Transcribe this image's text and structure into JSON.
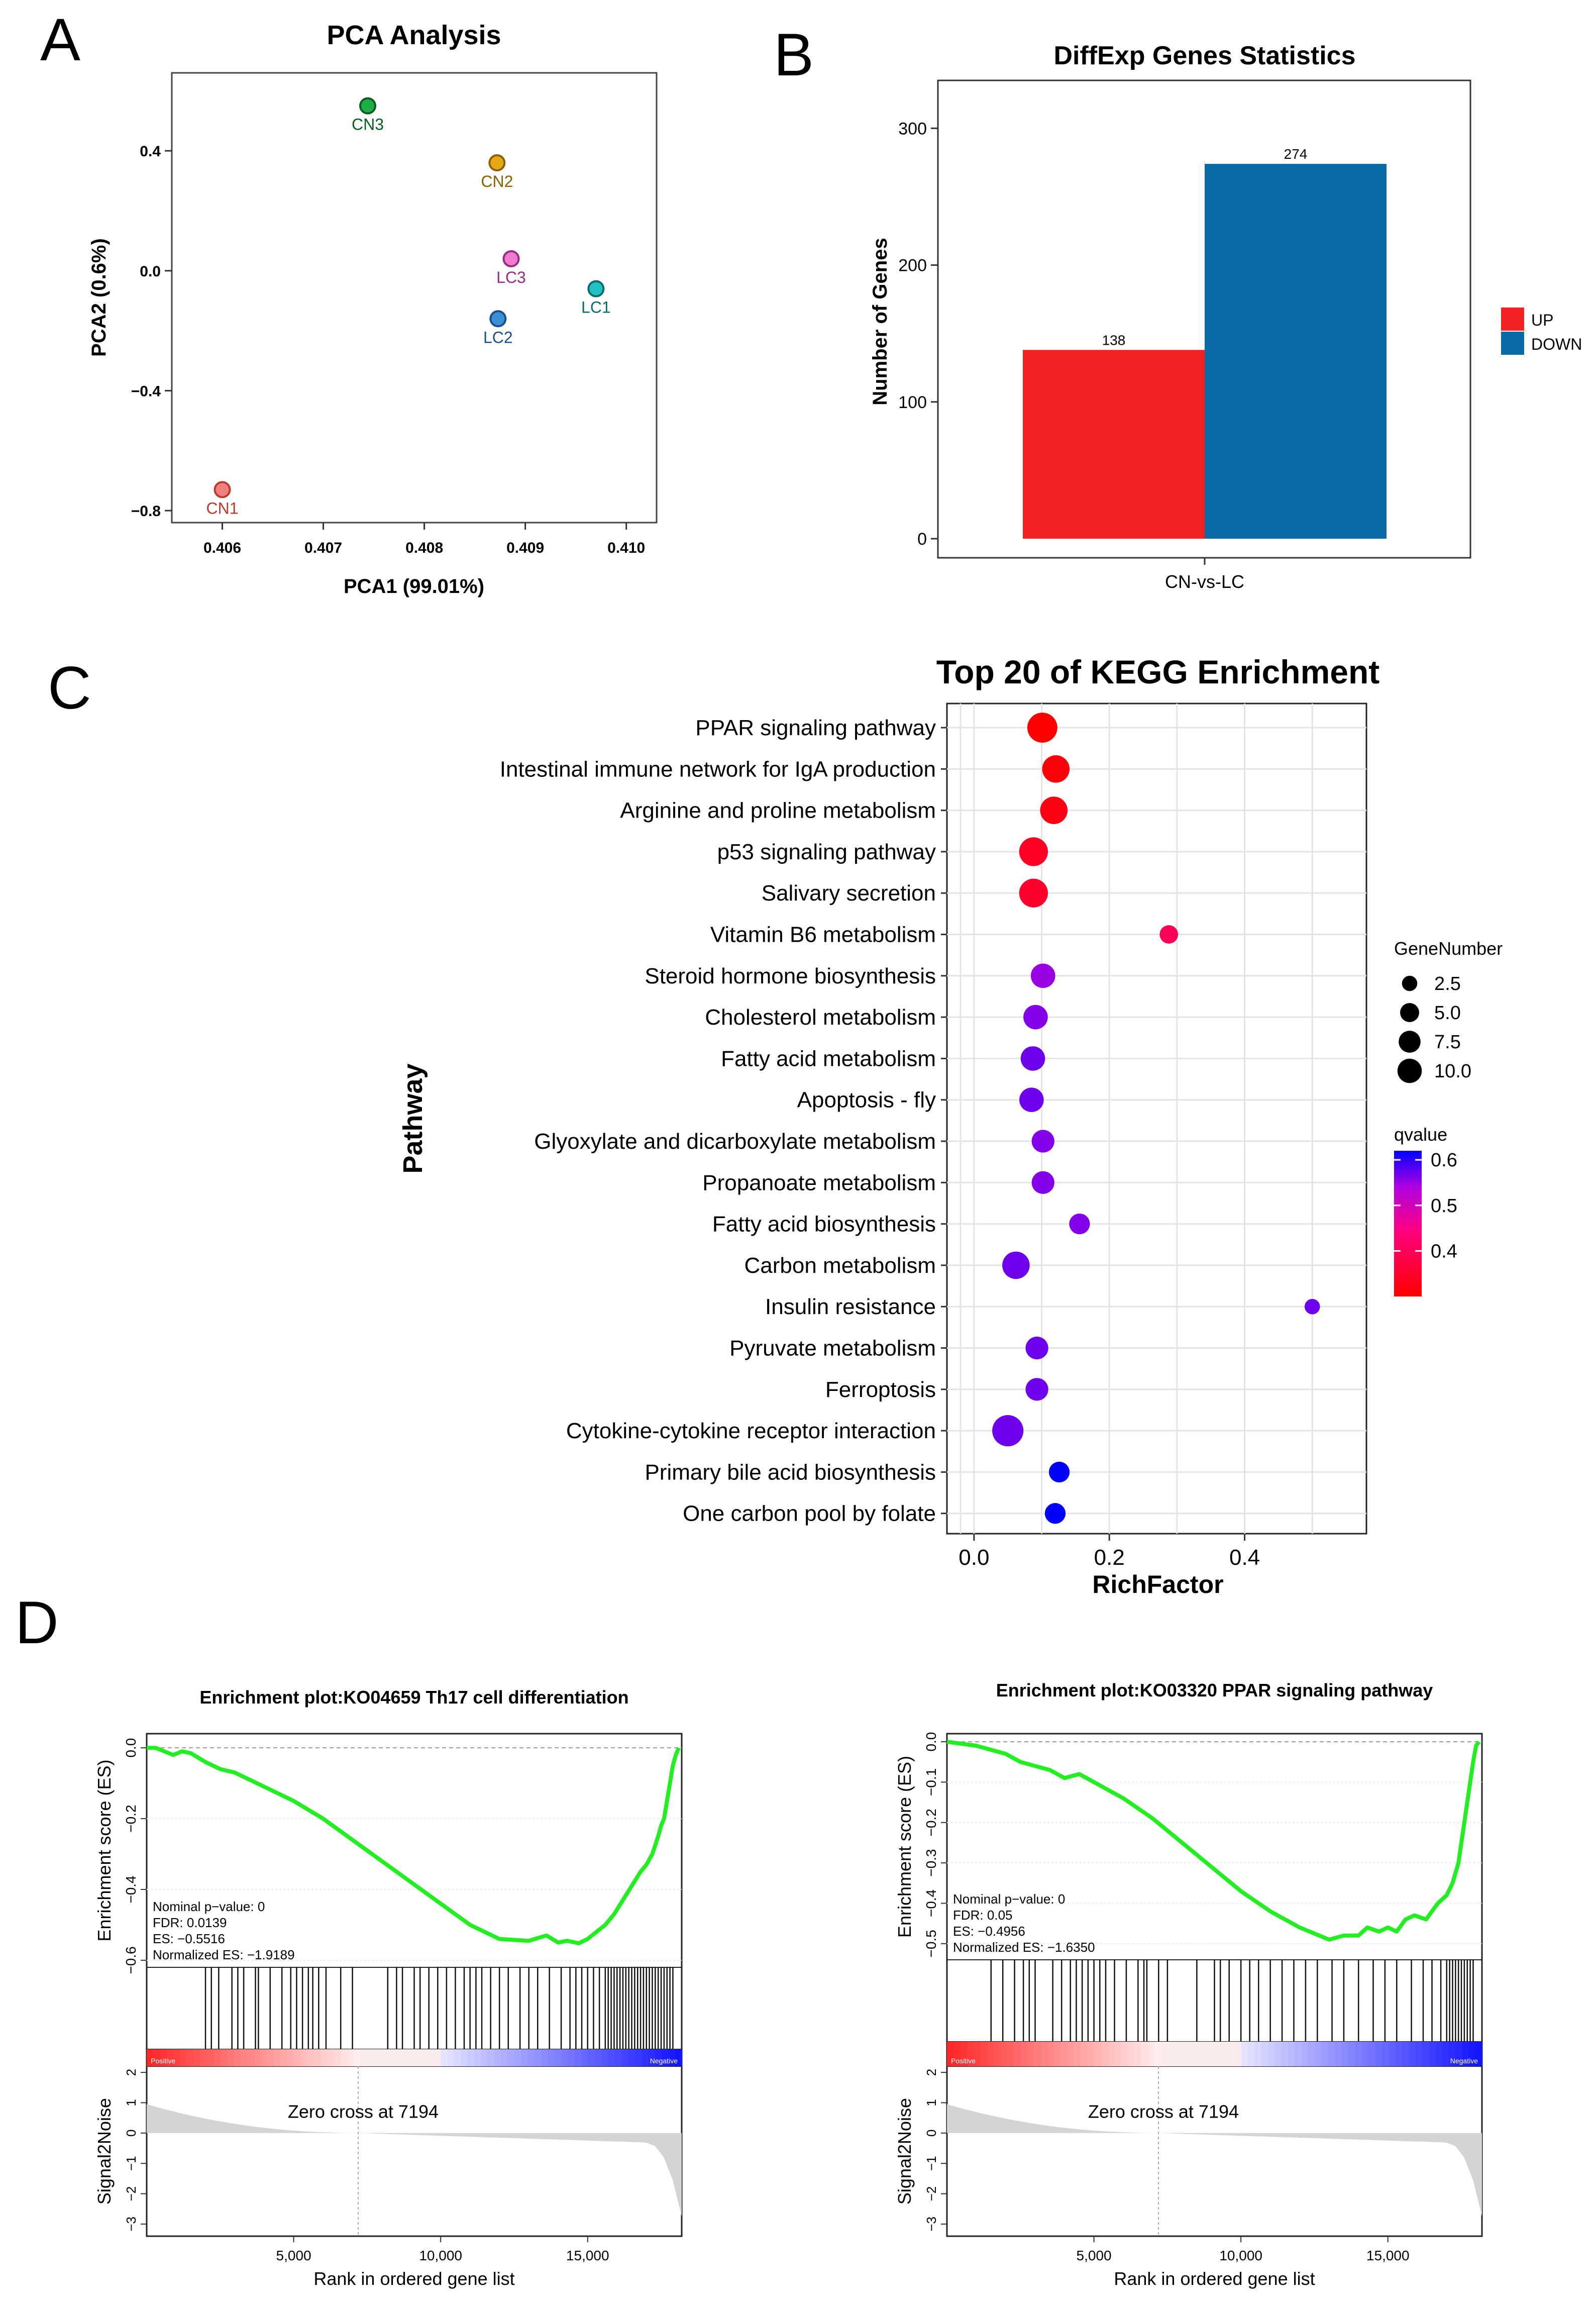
{
  "chart_data": [
    {
      "panel": "A",
      "type": "scatter",
      "title": "PCA Analysis",
      "xlabel": "PCA1 (99.01%)",
      "ylabel": "PCA2 (0.6%)",
      "xlim": [
        0.4055,
        0.4103
      ],
      "ylim": [
        -0.84,
        0.66
      ],
      "xticks": [
        0.406,
        0.407,
        0.408,
        0.409,
        0.41
      ],
      "xtick_labels": [
        "0.406",
        "0.407",
        "0.408",
        "0.409",
        "0.410"
      ],
      "yticks": [
        -0.8,
        -0.4,
        0.0,
        0.4
      ],
      "ytick_labels": [
        "−0.8",
        "−0.4",
        "0.0",
        "0.4"
      ],
      "points": [
        {
          "label": "CN1",
          "x": 0.406,
          "y": -0.73,
          "color": "#f08080",
          "stroke": "#c0392b"
        },
        {
          "label": "CN2",
          "x": 0.40872,
          "y": 0.36,
          "color": "#e6a817",
          "stroke": "#8a6000"
        },
        {
          "label": "CN3",
          "x": 0.40744,
          "y": 0.55,
          "color": "#1fae45",
          "stroke": "#0b5d22"
        },
        {
          "label": "LC1",
          "x": 0.4097,
          "y": -0.06,
          "color": "#20c0c4",
          "stroke": "#0b6c6e"
        },
        {
          "label": "LC2",
          "x": 0.40873,
          "y": -0.16,
          "color": "#3a8fd6",
          "stroke": "#1a4f8a"
        },
        {
          "label": "LC3",
          "x": 0.40886,
          "y": 0.04,
          "color": "#ee7bd0",
          "stroke": "#9b2a85"
        }
      ]
    },
    {
      "panel": "B",
      "type": "bar",
      "title": "DiffExp Genes Statistics",
      "xlabel": "",
      "ylabel": "Number of Genes",
      "categories": [
        "CN-vs-LC"
      ],
      "series": [
        {
          "name": "UP",
          "values": [
            138
          ],
          "color": "#f22222"
        },
        {
          "name": "DOWN",
          "values": [
            274
          ],
          "color": "#0a6aa6"
        }
      ],
      "ylim": [
        0,
        335
      ],
      "yticks": [
        0,
        100,
        200,
        300
      ],
      "ytick_labels": [
        "0",
        "100",
        "200",
        "300"
      ],
      "legend_position": "right"
    },
    {
      "panel": "C",
      "type": "scatter",
      "title": "Top 20 of KEGG Enrichment",
      "xlabel": "RichFactor",
      "ylabel": "Pathway",
      "xlim": [
        -0.04,
        0.58
      ],
      "xticks": [
        0.0,
        0.2,
        0.4
      ],
      "xtick_labels": [
        "0.0",
        "0.2",
        "0.4"
      ],
      "size_legend": {
        "title": "GeneNumber",
        "values": [
          2.5,
          5.0,
          7.5,
          10.0
        ],
        "labels": [
          "2.5",
          "5.0",
          "7.5",
          "10.0"
        ]
      },
      "color_legend": {
        "title": "qvalue",
        "min": 0.3,
        "max": 0.62,
        "ticks": [
          0.4,
          0.5,
          0.6
        ],
        "tick_labels": [
          "0.4",
          "0.5",
          "0.6"
        ],
        "low_color": "#ff0000",
        "high_color": "#0000ff"
      },
      "pathways": [
        {
          "name": "PPAR signaling pathway",
          "rich_factor": 0.101,
          "gene_number": 9,
          "qvalue": 0.3
        },
        {
          "name": "Intestinal immune network for IgA production",
          "rich_factor": 0.121,
          "gene_number": 7,
          "qvalue": 0.31
        },
        {
          "name": "Arginine and proline metabolism",
          "rich_factor": 0.118,
          "gene_number": 7,
          "qvalue": 0.32
        },
        {
          "name": "p53 signaling pathway",
          "rich_factor": 0.088,
          "gene_number": 8,
          "qvalue": 0.34
        },
        {
          "name": "Salivary secretion",
          "rich_factor": 0.088,
          "gene_number": 8,
          "qvalue": 0.35
        },
        {
          "name": "Vitamin B6 metabolism",
          "rich_factor": 0.288,
          "gene_number": 2,
          "qvalue": 0.4
        },
        {
          "name": "Steroid hormone biosynthesis",
          "rich_factor": 0.102,
          "gene_number": 5,
          "qvalue": 0.55
        },
        {
          "name": "Cholesterol metabolism",
          "rich_factor": 0.091,
          "gene_number": 5,
          "qvalue": 0.56
        },
        {
          "name": "Fatty acid metabolism",
          "rich_factor": 0.087,
          "gene_number": 5,
          "qvalue": 0.57
        },
        {
          "name": "Apoptosis - fly",
          "rich_factor": 0.085,
          "gene_number": 5,
          "qvalue": 0.57
        },
        {
          "name": "Glyoxylate and dicarboxylate metabolism",
          "rich_factor": 0.102,
          "gene_number": 4,
          "qvalue": 0.56
        },
        {
          "name": "Propanoate metabolism",
          "rich_factor": 0.102,
          "gene_number": 4,
          "qvalue": 0.56
        },
        {
          "name": "Fatty acid biosynthesis",
          "rich_factor": 0.156,
          "gene_number": 3,
          "qvalue": 0.56
        },
        {
          "name": "Carbon metabolism",
          "rich_factor": 0.062,
          "gene_number": 7,
          "qvalue": 0.57
        },
        {
          "name": "Insulin resistance",
          "rich_factor": 0.5,
          "gene_number": 1,
          "qvalue": 0.57
        },
        {
          "name": "Pyruvate metabolism",
          "rich_factor": 0.093,
          "gene_number": 4,
          "qvalue": 0.57
        },
        {
          "name": "Ferroptosis",
          "rich_factor": 0.093,
          "gene_number": 4,
          "qvalue": 0.57
        },
        {
          "name": "Cytokine-cytokine receptor interaction",
          "rich_factor": 0.05,
          "gene_number": 10,
          "qvalue": 0.57
        },
        {
          "name": "Primary bile acid biosynthesis",
          "rich_factor": 0.126,
          "gene_number": 3,
          "qvalue": 0.62
        },
        {
          "name": "One carbon pool by folate",
          "rich_factor": 0.12,
          "gene_number": 3,
          "qvalue": 0.62
        }
      ]
    },
    {
      "panel": "D-left",
      "type": "line",
      "title": "Enrichment plot:KO04659 Th17 cell differentiation",
      "xlabel": "Rank in ordered gene list",
      "ylabel": "Enrichment score (ES)",
      "ylabel_bottom": "Signal2Noise",
      "xlim": [
        0,
        18200
      ],
      "ylim": [
        -0.62,
        0.04
      ],
      "yticks": [
        0.0,
        -0.2,
        -0.4,
        -0.6
      ],
      "ytick_labels": [
        "0.0",
        "−0.2",
        "−0.4",
        "−0.6"
      ],
      "xticks": [
        5000,
        10000,
        15000
      ],
      "xtick_labels": [
        "5,000",
        "10,000",
        "15,000"
      ],
      "signal_yticks": [
        2,
        1,
        0,
        -1,
        -2,
        -3
      ],
      "signal_ytick_labels": [
        "2",
        "1",
        "0",
        "−1",
        "−2",
        "−3"
      ],
      "zero_cross": 7194,
      "zero_cross_label": "Zero cross at 7194",
      "positive_label": "Positive",
      "negative_label": "Negative",
      "stats": [
        "Nominal p−value: 0",
        "FDR: 0.0139",
        "ES: −0.5516",
        "Normalized ES: −1.9189"
      ],
      "es_curve": {
        "x": [
          0,
          300,
          600,
          900,
          1200,
          1500,
          2000,
          2500,
          3000,
          3500,
          4000,
          5000,
          6000,
          7000,
          8000,
          9000,
          10000,
          11000,
          12000,
          13000,
          13600,
          14000,
          14300,
          14700,
          15000,
          15300,
          15600,
          15900,
          16200,
          16500,
          16800,
          17000,
          17200,
          17400,
          17500,
          17600,
          17700,
          17800,
          17900,
          18000,
          18100
        ],
        "y": [
          0.0,
          0.0,
          -0.01,
          -0.02,
          -0.01,
          -0.015,
          -0.04,
          -0.06,
          -0.07,
          -0.09,
          -0.11,
          -0.15,
          -0.2,
          -0.26,
          -0.32,
          -0.38,
          -0.44,
          -0.5,
          -0.54,
          -0.545,
          -0.53,
          -0.55,
          -0.545,
          -0.552,
          -0.54,
          -0.52,
          -0.5,
          -0.47,
          -0.43,
          -0.39,
          -0.35,
          -0.33,
          -0.3,
          -0.25,
          -0.22,
          -0.2,
          -0.15,
          -0.1,
          -0.05,
          -0.02,
          0.0
        ]
      },
      "hit_positions": [
        2000,
        2200,
        2450,
        2900,
        3100,
        3300,
        3700,
        3800,
        4200,
        4600,
        4900,
        5100,
        5300,
        5500,
        5650,
        5850,
        6100,
        6600,
        7000,
        8200,
        8500,
        8700,
        9100,
        9300,
        9600,
        9900,
        10200,
        10500,
        10800,
        11000,
        11200,
        11400,
        11700,
        12000,
        12300,
        12700,
        13000,
        13300,
        13700,
        14100,
        14400,
        14600,
        14800,
        15000,
        15200,
        15400,
        15600,
        15700,
        15800,
        15900,
        16000,
        16100,
        16200,
        16300,
        16400,
        16500,
        16600,
        16700,
        16800,
        16900,
        17000,
        17100,
        17200,
        17300,
        17400,
        17500,
        17600,
        17700,
        17800,
        17900
      ]
    },
    {
      "panel": "D-right",
      "type": "line",
      "title": "Enrichment plot:KO03320 PPAR signaling pathway",
      "xlabel": "Rank in ordered gene list",
      "ylabel": "Enrichment score (ES)",
      "ylabel_bottom": "Signal2Noise",
      "xlim": [
        0,
        18200
      ],
      "ylim": [
        -0.54,
        0.02
      ],
      "yticks": [
        0.0,
        -0.1,
        -0.2,
        -0.3,
        -0.4,
        -0.5
      ],
      "ytick_labels": [
        "0.0",
        "−0.1",
        "−0.2",
        "−0.3",
        "−0.4",
        "−0.5"
      ],
      "xticks": [
        5000,
        10000,
        15000
      ],
      "xtick_labels": [
        "5,000",
        "10,000",
        "15,000"
      ],
      "signal_yticks": [
        2,
        1,
        0,
        -1,
        -2,
        -3
      ],
      "signal_ytick_labels": [
        "2",
        "1",
        "0",
        "−1",
        "−2",
        "−3"
      ],
      "zero_cross": 7194,
      "zero_cross_label": "Zero cross at 7194",
      "positive_label": "Positive",
      "negative_label": "Negative",
      "stats": [
        "Nominal p−value: 0",
        "FDR: 0.05",
        "ES: −0.4956",
        "Normalized ES: −1.6350"
      ],
      "es_curve": {
        "x": [
          0,
          500,
          1000,
          1500,
          2000,
          2500,
          3000,
          3500,
          4000,
          4500,
          5000,
          6000,
          7000,
          8000,
          9000,
          10000,
          11000,
          12000,
          13000,
          13500,
          14000,
          14300,
          14700,
          15000,
          15300,
          15600,
          15900,
          16300,
          16700,
          17000,
          17200,
          17400,
          17500,
          17600,
          17700,
          17800,
          17900,
          18000,
          18100
        ],
        "y": [
          0.0,
          -0.005,
          -0.01,
          -0.02,
          -0.03,
          -0.05,
          -0.06,
          -0.07,
          -0.09,
          -0.08,
          -0.1,
          -0.14,
          -0.19,
          -0.25,
          -0.31,
          -0.37,
          -0.42,
          -0.46,
          -0.49,
          -0.48,
          -0.48,
          -0.46,
          -0.47,
          -0.46,
          -0.47,
          -0.44,
          -0.43,
          -0.44,
          -0.4,
          -0.38,
          -0.35,
          -0.3,
          -0.25,
          -0.2,
          -0.15,
          -0.1,
          -0.05,
          -0.01,
          0.0
        ]
      },
      "hit_positions": [
        1500,
        1900,
        2300,
        2600,
        2800,
        3000,
        3600,
        3900,
        4200,
        4400,
        4600,
        4800,
        5000,
        5200,
        5400,
        5700,
        6100,
        6500,
        6700,
        6800,
        7200,
        7500,
        8500,
        9100,
        9300,
        9600,
        10000,
        10300,
        10600,
        11000,
        11400,
        11800,
        12200,
        12600,
        13100,
        13500,
        14000,
        14500,
        14900,
        15300,
        15800,
        16200,
        16500,
        16800,
        17000,
        17100,
        17200,
        17300,
        17400,
        17500,
        17600,
        17700,
        17800,
        17900
      ]
    }
  ],
  "panel_labels": {
    "a": "A",
    "b": "B",
    "c": "C",
    "d": "D"
  },
  "bar_category_label": "CN-vs-LC",
  "legend_up": "UP",
  "legend_down": "DOWN"
}
